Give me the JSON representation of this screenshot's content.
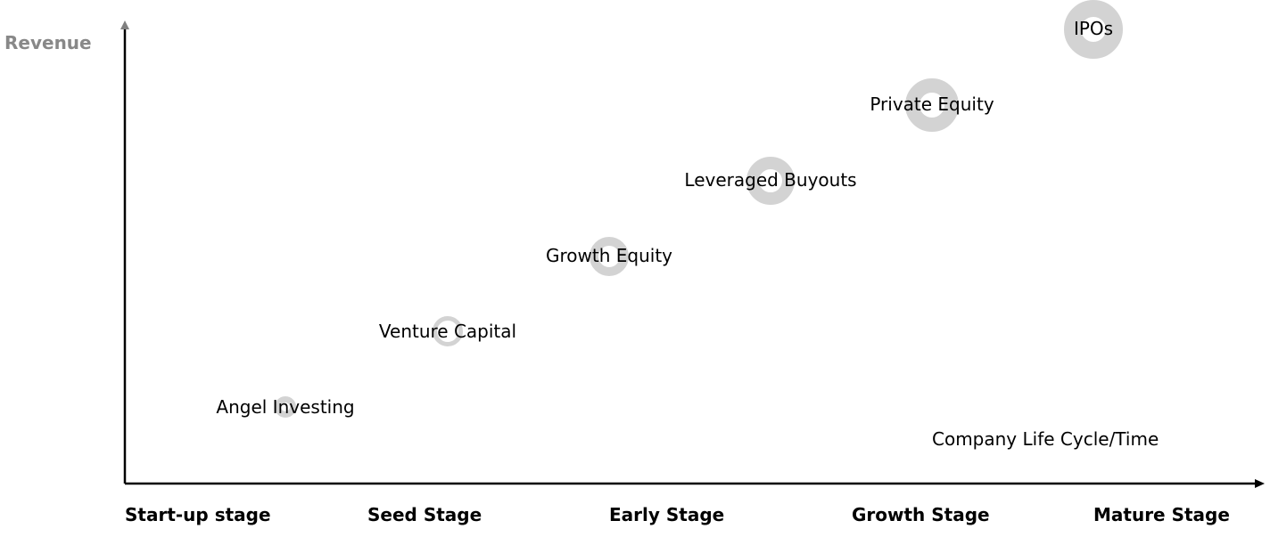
{
  "axes": {
    "y_label": "Revenue",
    "x_note": "Company Life Cycle/Time"
  },
  "stages": [
    "Start-up stage",
    "Seed Stage",
    "Early Stage",
    "Growth Stage",
    "Mature Stage"
  ],
  "items": [
    {
      "label": "Angel Investing"
    },
    {
      "label": "Venture Capital"
    },
    {
      "label": "Growth Equity"
    },
    {
      "label": "Leveraged Buyouts"
    },
    {
      "label": "Private Equity"
    },
    {
      "label": "IPOs"
    }
  ],
  "colors": {
    "axis": "#000000",
    "y_arrow": "#808080",
    "y_label": "#888888",
    "ring": "#d3d3d3"
  }
}
